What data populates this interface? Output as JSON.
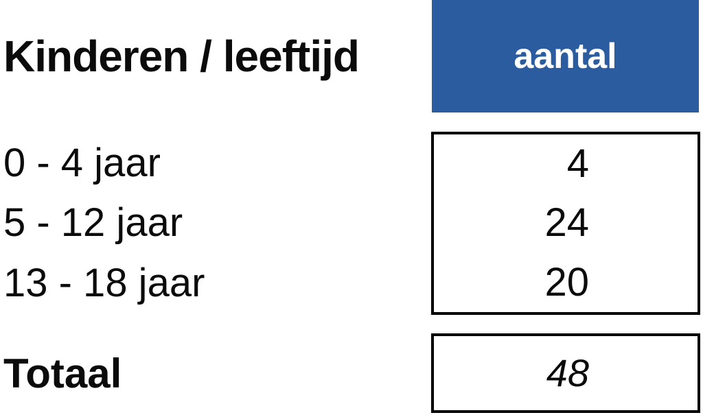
{
  "table": {
    "header_left": "Kinderen / leeftijd",
    "header_right": "aantal",
    "rows": [
      {
        "label": "0 - 4 jaar",
        "value": "4"
      },
      {
        "label": "5 - 12 jaar",
        "value": "24"
      },
      {
        "label": "13 - 18 jaar",
        "value": "20"
      }
    ],
    "total_label": "Totaal",
    "total_value": "48"
  },
  "chart_data": {
    "type": "table",
    "title": "Kinderen / leeftijd",
    "columns": [
      "Kinderen / leeftijd",
      "aantal"
    ],
    "categories": [
      "0 - 4 jaar",
      "5 - 12 jaar",
      "13 - 18 jaar"
    ],
    "values": [
      4,
      24,
      20
    ],
    "total_label": "Totaal",
    "total": 48
  },
  "colors": {
    "header_bg": "#2A5C9F",
    "header_text": "#FFFFFF",
    "text": "#0B0B0B",
    "border": "#000000",
    "background": "#FFFFFF"
  }
}
